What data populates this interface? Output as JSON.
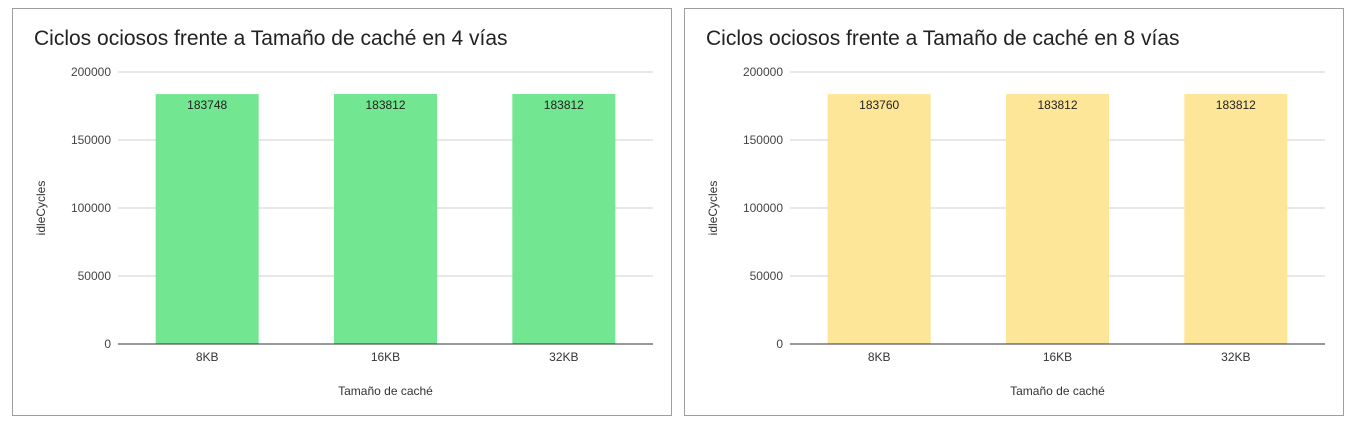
{
  "chart_data": [
    {
      "type": "bar",
      "title": "Ciclos ociosos frente a Tamaño de caché en 4 vías",
      "xlabel": "Tamaño de caché",
      "ylabel": "idleCycles",
      "categories": [
        "8KB",
        "16KB",
        "32KB"
      ],
      "values": [
        183748,
        183812,
        183812
      ],
      "data_labels": [
        "183748",
        "183812",
        "183812"
      ],
      "ylim": [
        0,
        200000
      ],
      "yticks": [
        0,
        50000,
        100000,
        150000,
        200000
      ],
      "ytick_labels": [
        "0",
        "50000",
        "100000",
        "150000",
        "200000"
      ],
      "grid": true,
      "bar_color": "#73e691"
    },
    {
      "type": "bar",
      "title": "Ciclos ociosos frente a Tamaño de caché en 8 vías",
      "xlabel": "Tamaño de caché",
      "ylabel": "idleCycles",
      "categories": [
        "8KB",
        "16KB",
        "32KB"
      ],
      "values": [
        183760,
        183812,
        183812
      ],
      "data_labels": [
        "183760",
        "183812",
        "183812"
      ],
      "ylim": [
        0,
        200000
      ],
      "yticks": [
        0,
        50000,
        100000,
        150000,
        200000
      ],
      "ytick_labels": [
        "0",
        "50000",
        "100000",
        "150000",
        "200000"
      ],
      "grid": true,
      "bar_color": "#fde698"
    }
  ]
}
